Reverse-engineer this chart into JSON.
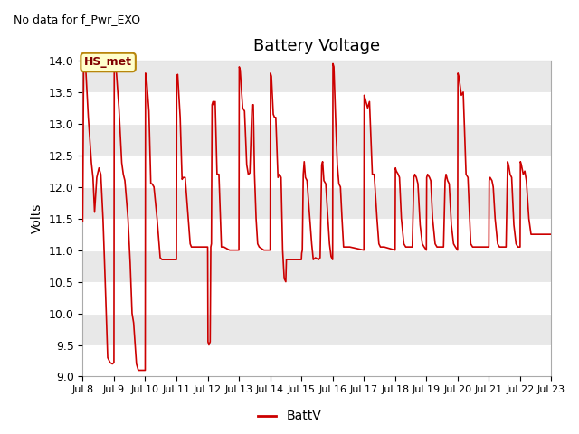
{
  "title": "Battery Voltage",
  "top_left_text": "No data for f_Pwr_EXO",
  "ylabel": "Volts",
  "legend_label": "BattV",
  "line_color": "#cc0000",
  "hs_met_label": "HS_met",
  "bg_color": "#e8e8e8",
  "band_color": "#d0d0d0",
  "ylim": [
    9.0,
    14.0
  ],
  "yticks": [
    9.0,
    9.5,
    10.0,
    10.5,
    11.0,
    11.5,
    12.0,
    12.5,
    13.0,
    13.5,
    14.0
  ],
  "xtick_labels": [
    "Jul 8",
    "Jul 9",
    "Jul 10",
    "Jul 11",
    "Jul 12",
    "Jul 13",
    "Jul 14",
    "Jul 15",
    "Jul 16",
    "Jul 17",
    "Jul 18",
    "Jul 19",
    "Jul 20",
    "Jul 21",
    "Jul 22",
    "Jul 23"
  ],
  "grid_color": "white",
  "line_width": 1.2,
  "key_points": [
    [
      8.0,
      11.45
    ],
    [
      8.03,
      13.8
    ],
    [
      8.06,
      13.9
    ],
    [
      8.1,
      13.85
    ],
    [
      8.18,
      13.1
    ],
    [
      8.28,
      12.38
    ],
    [
      8.33,
      12.15
    ],
    [
      8.38,
      11.6
    ],
    [
      8.45,
      12.15
    ],
    [
      8.52,
      12.3
    ],
    [
      8.58,
      12.2
    ],
    [
      8.65,
      11.5
    ],
    [
      8.72,
      10.5
    ],
    [
      8.8,
      9.3
    ],
    [
      8.88,
      9.22
    ],
    [
      8.95,
      9.2
    ],
    [
      9.0,
      9.22
    ],
    [
      9.01,
      13.95
    ],
    [
      9.04,
      13.9
    ],
    [
      9.08,
      13.8
    ],
    [
      9.16,
      13.25
    ],
    [
      9.25,
      12.38
    ],
    [
      9.3,
      12.2
    ],
    [
      9.35,
      12.1
    ],
    [
      9.45,
      11.5
    ],
    [
      9.52,
      10.8
    ],
    [
      9.58,
      10.0
    ],
    [
      9.63,
      9.85
    ],
    [
      9.68,
      9.5
    ],
    [
      9.72,
      9.2
    ],
    [
      9.78,
      9.1
    ],
    [
      9.85,
      9.1
    ],
    [
      10.0,
      9.1
    ],
    [
      10.01,
      13.8
    ],
    [
      10.04,
      13.75
    ],
    [
      10.12,
      13.2
    ],
    [
      10.18,
      12.05
    ],
    [
      10.22,
      12.05
    ],
    [
      10.28,
      12.0
    ],
    [
      10.38,
      11.5
    ],
    [
      10.48,
      10.88
    ],
    [
      10.54,
      10.85
    ],
    [
      10.65,
      10.85
    ],
    [
      10.8,
      10.85
    ],
    [
      11.0,
      10.85
    ],
    [
      11.01,
      13.75
    ],
    [
      11.04,
      13.78
    ],
    [
      11.12,
      13.1
    ],
    [
      11.18,
      12.12
    ],
    [
      11.22,
      12.15
    ],
    [
      11.28,
      12.15
    ],
    [
      11.38,
      11.5
    ],
    [
      11.44,
      11.1
    ],
    [
      11.48,
      11.05
    ],
    [
      11.58,
      11.05
    ],
    [
      11.7,
      11.05
    ],
    [
      12.0,
      11.05
    ],
    [
      12.01,
      9.55
    ],
    [
      12.04,
      9.5
    ],
    [
      12.08,
      9.55
    ],
    [
      12.1,
      11.05
    ],
    [
      12.12,
      11.1
    ],
    [
      12.14,
      13.3
    ],
    [
      12.17,
      13.35
    ],
    [
      12.19,
      13.3
    ],
    [
      12.24,
      13.35
    ],
    [
      12.3,
      12.2
    ],
    [
      12.36,
      12.2
    ],
    [
      12.44,
      11.05
    ],
    [
      12.52,
      11.05
    ],
    [
      12.7,
      11.0
    ],
    [
      13.0,
      11.0
    ],
    [
      13.01,
      13.9
    ],
    [
      13.04,
      13.85
    ],
    [
      13.12,
      13.25
    ],
    [
      13.18,
      13.2
    ],
    [
      13.25,
      12.35
    ],
    [
      13.3,
      12.2
    ],
    [
      13.35,
      12.22
    ],
    [
      13.42,
      13.3
    ],
    [
      13.46,
      13.3
    ],
    [
      13.5,
      12.2
    ],
    [
      13.55,
      11.5
    ],
    [
      13.6,
      11.1
    ],
    [
      13.65,
      11.05
    ],
    [
      13.8,
      11.0
    ],
    [
      14.0,
      11.0
    ],
    [
      14.01,
      13.8
    ],
    [
      14.04,
      13.75
    ],
    [
      14.1,
      13.15
    ],
    [
      14.14,
      13.1
    ],
    [
      14.18,
      13.1
    ],
    [
      14.25,
      12.15
    ],
    [
      14.3,
      12.2
    ],
    [
      14.35,
      12.15
    ],
    [
      14.4,
      11.0
    ],
    [
      14.45,
      10.55
    ],
    [
      14.5,
      10.5
    ],
    [
      14.52,
      10.85
    ],
    [
      14.58,
      10.85
    ],
    [
      14.75,
      10.85
    ],
    [
      15.0,
      10.85
    ],
    [
      15.01,
      10.95
    ],
    [
      15.03,
      11.0
    ],
    [
      15.06,
      12.2
    ],
    [
      15.09,
      12.4
    ],
    [
      15.13,
      12.15
    ],
    [
      15.18,
      12.1
    ],
    [
      15.27,
      11.5
    ],
    [
      15.33,
      11.1
    ],
    [
      15.38,
      10.85
    ],
    [
      15.45,
      10.88
    ],
    [
      15.55,
      10.85
    ],
    [
      15.6,
      10.88
    ],
    [
      15.65,
      12.35
    ],
    [
      15.68,
      12.4
    ],
    [
      15.72,
      12.1
    ],
    [
      15.78,
      12.05
    ],
    [
      15.85,
      11.5
    ],
    [
      15.9,
      11.1
    ],
    [
      15.95,
      10.9
    ],
    [
      16.0,
      10.85
    ],
    [
      16.01,
      13.95
    ],
    [
      16.04,
      13.9
    ],
    [
      16.1,
      13.0
    ],
    [
      16.15,
      12.35
    ],
    [
      16.2,
      12.05
    ],
    [
      16.25,
      12.0
    ],
    [
      16.3,
      11.5
    ],
    [
      16.35,
      11.05
    ],
    [
      16.4,
      11.05
    ],
    [
      16.55,
      11.05
    ],
    [
      17.0,
      11.0
    ],
    [
      17.01,
      13.45
    ],
    [
      17.04,
      13.4
    ],
    [
      17.12,
      13.25
    ],
    [
      17.18,
      13.35
    ],
    [
      17.27,
      12.2
    ],
    [
      17.33,
      12.2
    ],
    [
      17.42,
      11.5
    ],
    [
      17.48,
      11.1
    ],
    [
      17.53,
      11.05
    ],
    [
      17.65,
      11.05
    ],
    [
      18.0,
      11.0
    ],
    [
      18.01,
      12.3
    ],
    [
      18.04,
      12.25
    ],
    [
      18.1,
      12.2
    ],
    [
      18.14,
      12.15
    ],
    [
      18.2,
      11.5
    ],
    [
      18.28,
      11.1
    ],
    [
      18.34,
      11.05
    ],
    [
      18.45,
      11.05
    ],
    [
      18.55,
      11.05
    ],
    [
      18.6,
      12.15
    ],
    [
      18.63,
      12.2
    ],
    [
      18.68,
      12.15
    ],
    [
      18.73,
      12.05
    ],
    [
      18.8,
      11.4
    ],
    [
      18.87,
      11.1
    ],
    [
      18.93,
      11.05
    ],
    [
      19.0,
      11.0
    ],
    [
      19.01,
      12.15
    ],
    [
      19.04,
      12.2
    ],
    [
      19.1,
      12.15
    ],
    [
      19.14,
      12.1
    ],
    [
      19.2,
      11.5
    ],
    [
      19.28,
      11.1
    ],
    [
      19.34,
      11.05
    ],
    [
      19.45,
      11.05
    ],
    [
      19.55,
      11.05
    ],
    [
      19.6,
      12.1
    ],
    [
      19.63,
      12.2
    ],
    [
      19.68,
      12.1
    ],
    [
      19.73,
      12.05
    ],
    [
      19.8,
      11.4
    ],
    [
      19.87,
      11.1
    ],
    [
      19.93,
      11.05
    ],
    [
      20.0,
      11.0
    ],
    [
      20.01,
      13.8
    ],
    [
      20.04,
      13.75
    ],
    [
      20.12,
      13.45
    ],
    [
      20.18,
      13.5
    ],
    [
      20.27,
      12.2
    ],
    [
      20.33,
      12.15
    ],
    [
      20.42,
      11.1
    ],
    [
      20.48,
      11.05
    ],
    [
      20.58,
      11.05
    ],
    [
      21.0,
      11.05
    ],
    [
      21.01,
      12.1
    ],
    [
      21.04,
      12.15
    ],
    [
      21.1,
      12.1
    ],
    [
      21.14,
      12.0
    ],
    [
      21.2,
      11.5
    ],
    [
      21.28,
      11.1
    ],
    [
      21.34,
      11.05
    ],
    [
      21.48,
      11.05
    ],
    [
      21.55,
      11.05
    ],
    [
      21.6,
      12.4
    ],
    [
      21.63,
      12.35
    ],
    [
      21.68,
      12.2
    ],
    [
      21.73,
      12.15
    ],
    [
      21.8,
      11.4
    ],
    [
      21.87,
      11.1
    ],
    [
      21.93,
      11.05
    ],
    [
      22.0,
      11.05
    ],
    [
      22.01,
      12.4
    ],
    [
      22.04,
      12.35
    ],
    [
      22.1,
      12.2
    ],
    [
      22.15,
      12.25
    ],
    [
      22.2,
      12.1
    ],
    [
      22.28,
      11.5
    ],
    [
      22.35,
      11.25
    ],
    [
      22.5,
      11.25
    ],
    [
      23.0,
      11.25
    ]
  ]
}
